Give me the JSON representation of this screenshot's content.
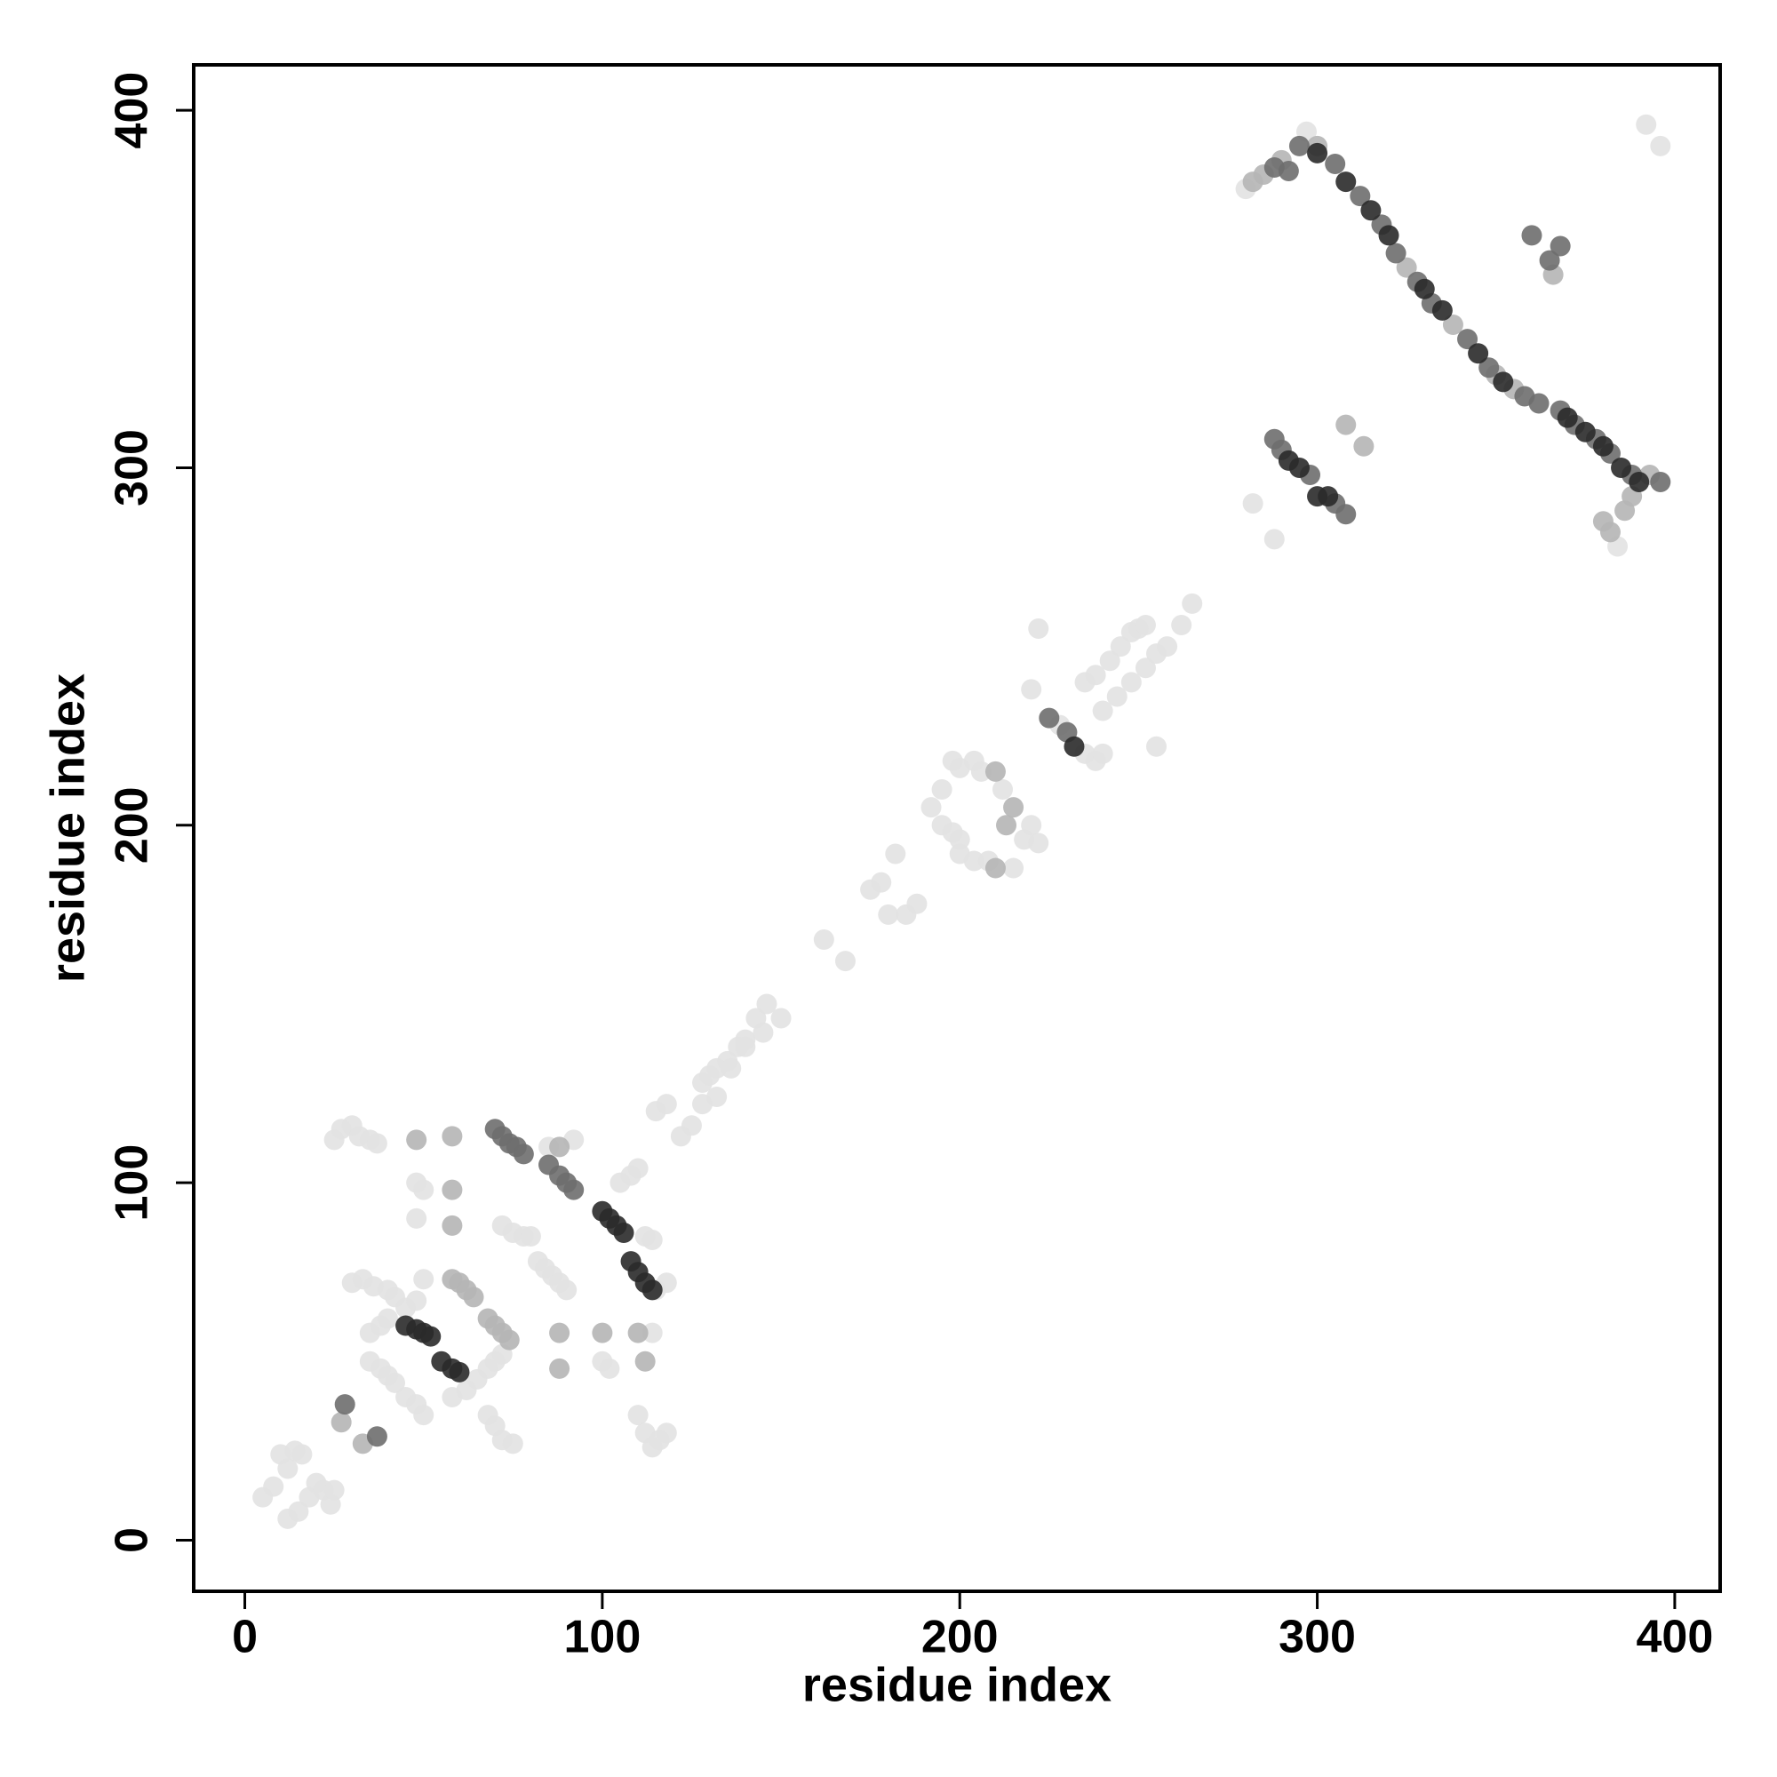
{
  "chart_data": {
    "type": "scatter",
    "xlabel": "residue index",
    "ylabel": "residue index",
    "xlim": [
      -14.3,
      412.7
    ],
    "ylim": [
      -14.3,
      412.7
    ],
    "xticks": [
      0,
      100,
      200,
      300,
      400
    ],
    "yticks": [
      0,
      100,
      200,
      300,
      400
    ],
    "series": [
      {
        "color": "#e2e2e2",
        "x": [
          5,
          8,
          10,
          12,
          14,
          16,
          12,
          15,
          18,
          20,
          22,
          24,
          25,
          25,
          27,
          30,
          32,
          35,
          37,
          30,
          33,
          36,
          40,
          42,
          35,
          38,
          40,
          45,
          48,
          50,
          35,
          38,
          40,
          42,
          45,
          48,
          50,
          58,
          62,
          65,
          68,
          70,
          72,
          68,
          70,
          72,
          75,
          48,
          50,
          48,
          72,
          75,
          78,
          80,
          82,
          84,
          86,
          88,
          90,
          85,
          92,
          100,
          102,
          105,
          108,
          110,
          112,
          114,
          114,
          110,
          112,
          114,
          116,
          118,
          115,
          118,
          115,
          118,
          122,
          125,
          128,
          130,
          132,
          135,
          138,
          140,
          143,
          146,
          128,
          132,
          136,
          140,
          145,
          150,
          162,
          168,
          175,
          178,
          182,
          185,
          188,
          180,
          192,
          195,
          198,
          200,
          204,
          206,
          212,
          195,
          198,
          200,
          200,
          204,
          208,
          215,
          218,
          220,
          222,
          222,
          220,
          228,
          235,
          238,
          240,
          235,
          238,
          242,
          245,
          248,
          250,
          252,
          240,
          244,
          248,
          252,
          255,
          258,
          262,
          265,
          255,
          280,
          282,
          288,
          392,
          396,
          297,
          384
        ],
        "y": [
          12,
          15,
          24,
          20,
          25,
          24,
          6,
          8,
          12,
          16,
          14,
          10,
          14,
          112,
          115,
          116,
          113,
          112,
          111,
          72,
          73,
          71,
          70,
          68,
          58,
          60,
          62,
          65,
          67,
          73,
          50,
          48,
          46,
          44,
          40,
          38,
          35,
          40,
          42,
          45,
          48,
          50,
          52,
          35,
          32,
          28,
          27,
          100,
          98,
          90,
          88,
          86,
          85,
          85,
          78,
          76,
          74,
          72,
          70,
          110,
          112,
          50,
          48,
          100,
          102,
          104,
          85,
          84,
          58,
          35,
          30,
          26,
          28,
          30,
          70,
          72,
          120,
          122,
          113,
          116,
          128,
          130,
          132,
          134,
          138,
          140,
          146,
          150,
          122,
          124,
          132,
          138,
          142,
          146,
          168,
          162,
          182,
          184,
          192,
          175,
          178,
          175,
          205,
          210,
          218,
          216,
          218,
          215,
          210,
          200,
          198,
          196,
          192,
          190,
          190,
          188,
          196,
          200,
          195,
          255,
          238,
          228,
          220,
          218,
          220,
          240,
          242,
          246,
          250,
          254,
          255,
          256,
          232,
          236,
          240,
          244,
          248,
          250,
          256,
          262,
          222,
          378,
          290,
          280,
          396,
          390,
          394,
          278
        ]
      },
      {
        "color": "#b5b5b5",
        "x": [
          27,
          33,
          58,
          60,
          62,
          64,
          68,
          70,
          72,
          74,
          48,
          58,
          58,
          58,
          88,
          88,
          100,
          110,
          112,
          88,
          210,
          213,
          215,
          210,
          282,
          285,
          290,
          300,
          308,
          313,
          366,
          380,
          382,
          386,
          388,
          393,
          350,
          355,
          325,
          338
        ],
        "y": [
          33,
          27,
          73,
          72,
          70,
          68,
          62,
          60,
          58,
          56,
          112,
          113,
          88,
          98,
          58,
          48,
          58,
          58,
          50,
          110,
          188,
          200,
          205,
          215,
          380,
          382,
          386,
          390,
          312,
          306,
          354,
          285,
          282,
          288,
          292,
          298,
          326,
          322,
          356,
          340
        ]
      },
      {
        "color": "#6e6e6e",
        "x": [
          28,
          37,
          70,
          72,
          74,
          76,
          78,
          85,
          88,
          90,
          92,
          225,
          230,
          288,
          292,
          295,
          305,
          312,
          318,
          322,
          328,
          332,
          342,
          348,
          358,
          362,
          368,
          372,
          378,
          382,
          388,
          360,
          365,
          368,
          288,
          290,
          298,
          305,
          308,
          396
        ],
        "y": [
          38,
          29,
          115,
          113,
          111,
          110,
          108,
          105,
          102,
          100,
          98,
          230,
          226,
          384,
          383,
          390,
          385,
          376,
          368,
          360,
          352,
          346,
          336,
          328,
          320,
          318,
          316,
          312,
          308,
          304,
          298,
          365,
          358,
          362,
          308,
          305,
          298,
          290,
          287,
          296
        ]
      },
      {
        "color": "#2a2a2a",
        "x": [
          45,
          48,
          50,
          52,
          55,
          58,
          60,
          100,
          102,
          104,
          106,
          108,
          110,
          112,
          114,
          232,
          300,
          308,
          315,
          320,
          330,
          335,
          345,
          352,
          370,
          375,
          380,
          385,
          390,
          292,
          295,
          300,
          303
        ],
        "y": [
          60,
          59,
          58,
          57,
          50,
          48,
          47,
          92,
          90,
          88,
          86,
          78,
          75,
          72,
          70,
          222,
          388,
          380,
          372,
          365,
          350,
          344,
          332,
          324,
          314,
          310,
          306,
          300,
          296,
          302,
          300,
          292,
          292
        ]
      }
    ]
  }
}
